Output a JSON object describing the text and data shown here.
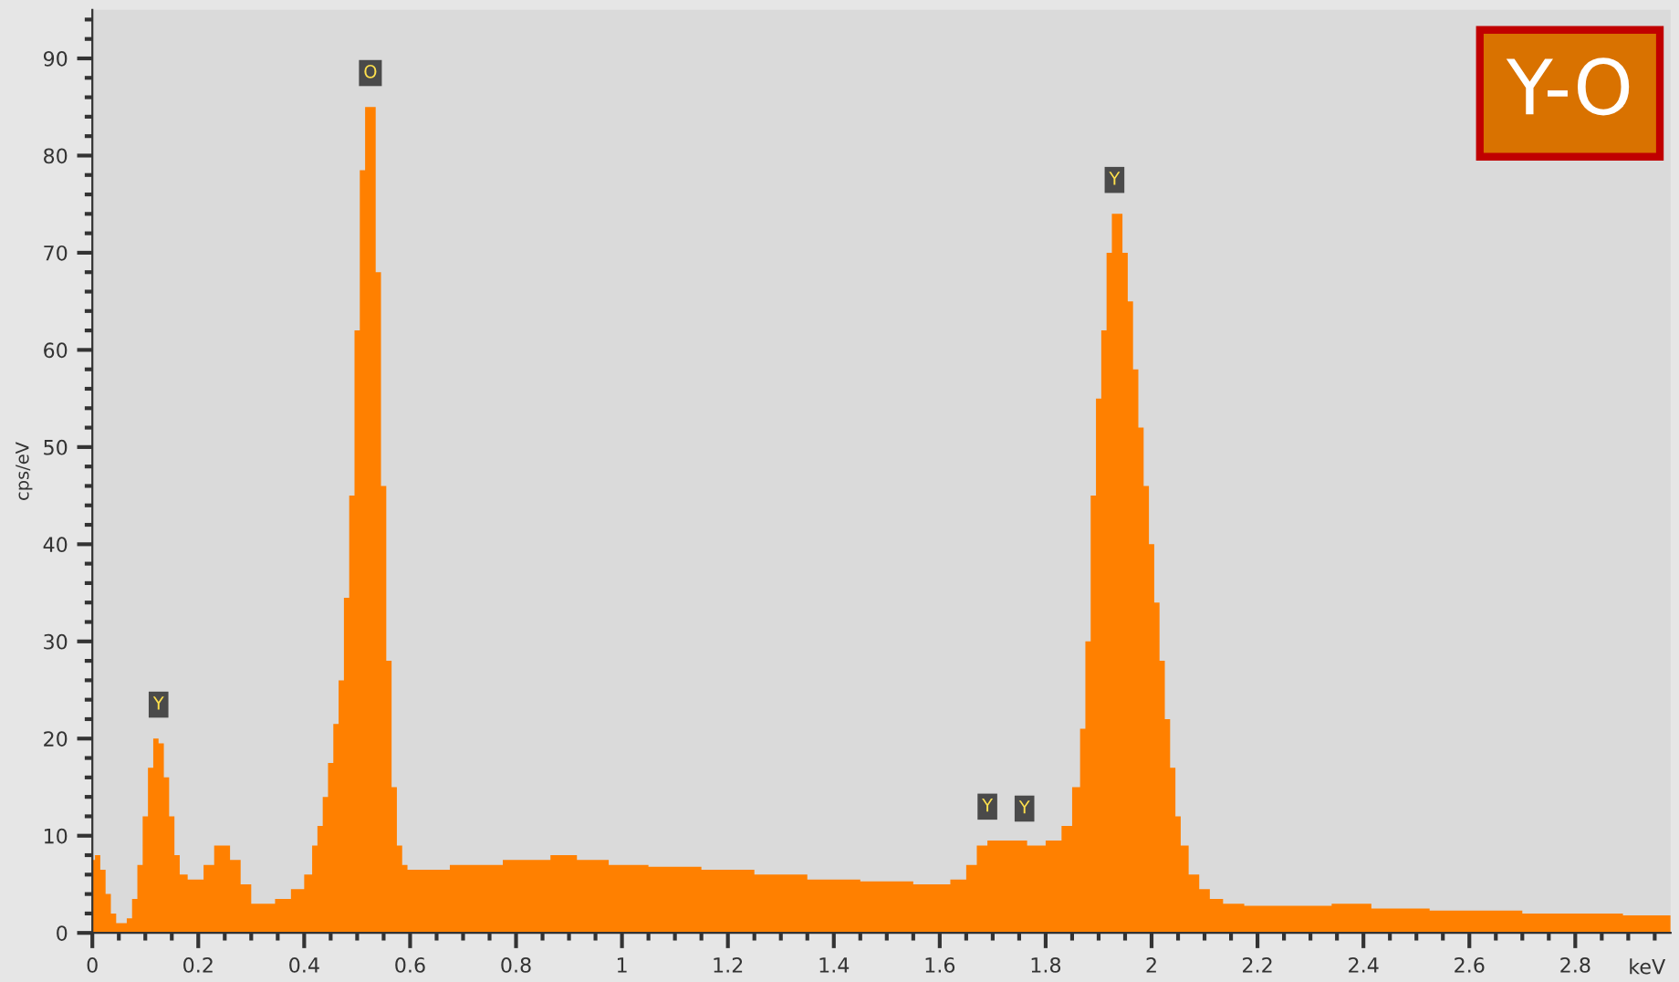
{
  "chart_data": {
    "type": "area",
    "title": "Y-O",
    "xlabel": "keV",
    "ylabel": "cps/eV",
    "xlim": [
      0,
      2.98
    ],
    "ylim": [
      0,
      95
    ],
    "xticks": [
      0,
      0.2,
      0.4,
      0.6,
      0.8,
      1,
      1.2,
      1.4,
      1.6,
      1.8,
      2,
      2.2,
      2.4,
      2.6,
      2.8
    ],
    "yticks": [
      0,
      10,
      20,
      30,
      40,
      50,
      60,
      70,
      80,
      90
    ],
    "grid": false,
    "legend": false,
    "annotations": [
      {
        "text": "Y",
        "x": 0.125,
        "y": 20
      },
      {
        "text": "O",
        "x": 0.525,
        "y": 85
      },
      {
        "text": "Y",
        "x": 1.69,
        "y": 9.5
      },
      {
        "text": "Y",
        "x": 1.76,
        "y": 9.3
      },
      {
        "text": "Y",
        "x": 1.93,
        "y": 74
      }
    ],
    "series": [
      {
        "color": "#ff8000",
        "x": [
          0.0,
          0.01,
          0.02,
          0.03,
          0.04,
          0.05,
          0.06,
          0.07,
          0.08,
          0.09,
          0.1,
          0.11,
          0.12,
          0.13,
          0.14,
          0.15,
          0.16,
          0.17,
          0.19,
          0.2,
          0.22,
          0.24,
          0.25,
          0.27,
          0.29,
          0.31,
          0.33,
          0.36,
          0.39,
          0.41,
          0.42,
          0.43,
          0.44,
          0.45,
          0.46,
          0.47,
          0.48,
          0.49,
          0.5,
          0.51,
          0.52,
          0.53,
          0.54,
          0.55,
          0.56,
          0.57,
          0.58,
          0.59,
          0.6,
          0.65,
          0.7,
          0.75,
          0.8,
          0.85,
          0.88,
          0.95,
          1.0,
          1.1,
          1.2,
          1.3,
          1.4,
          1.5,
          1.6,
          1.64,
          1.66,
          1.68,
          1.7,
          1.75,
          1.78,
          1.82,
          1.84,
          1.86,
          1.87,
          1.88,
          1.89,
          1.9,
          1.91,
          1.92,
          1.93,
          1.94,
          1.95,
          1.96,
          1.97,
          1.98,
          1.99,
          2.0,
          2.01,
          2.02,
          2.03,
          2.04,
          2.05,
          2.06,
          2.08,
          2.1,
          2.12,
          2.15,
          2.2,
          2.3,
          2.38,
          2.45,
          2.6,
          2.8,
          2.98
        ],
        "values": [
          7.5,
          8,
          6.5,
          4,
          2,
          1,
          1,
          1.5,
          3.5,
          7,
          12,
          17,
          20,
          19.5,
          16,
          12,
          8,
          6,
          5.5,
          5.5,
          7,
          9,
          9,
          7.5,
          5,
          3,
          3,
          3.5,
          4.5,
          6,
          9,
          11,
          14,
          17.5,
          21.5,
          26,
          34.5,
          45,
          62,
          78.5,
          85,
          85,
          68,
          46,
          28,
          15,
          9,
          7,
          6.5,
          6.5,
          7,
          7,
          7.5,
          7.5,
          8,
          7.5,
          7,
          6.8,
          6.5,
          6,
          5.5,
          5.3,
          5,
          5.5,
          7,
          9,
          9.5,
          9.5,
          9,
          9.5,
          11,
          15,
          21,
          30,
          45,
          55,
          62,
          70,
          74,
          74,
          70,
          65,
          58,
          52,
          46,
          40,
          34,
          28,
          22,
          17,
          12,
          9,
          6,
          4.5,
          3.5,
          3,
          2.8,
          2.8,
          3,
          2.5,
          2.3,
          2.0,
          1.8
        ]
      }
    ]
  }
}
